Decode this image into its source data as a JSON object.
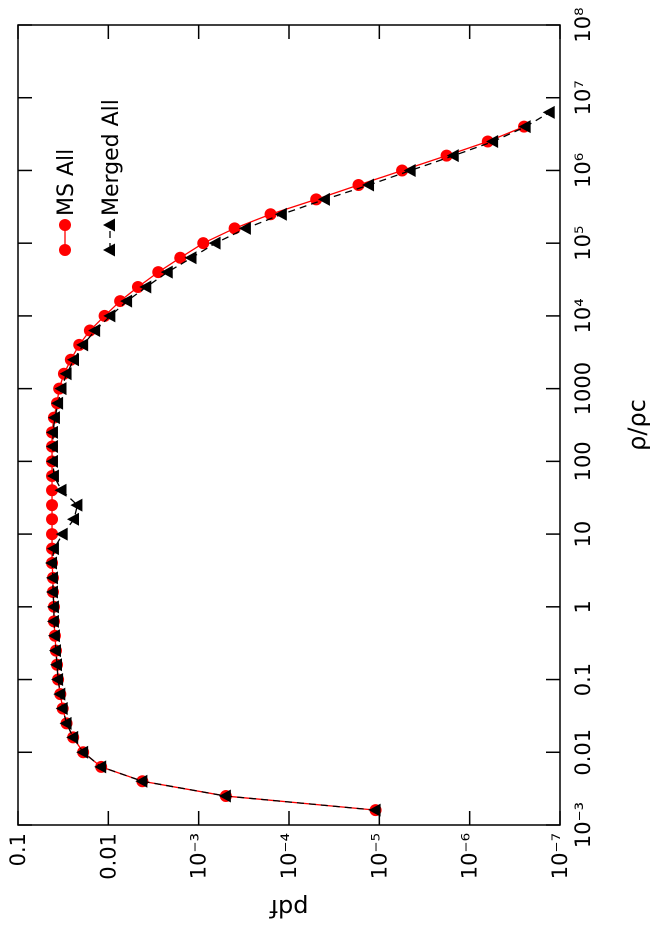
{
  "chart_data": {
    "type": "line",
    "xlabel": "ρ/ρc",
    "ylabel": "pdf",
    "xscale": "log",
    "yscale": "log",
    "xlim": [
      0.001,
      100000000
    ],
    "ylim": [
      1e-07,
      0.1
    ],
    "xticks": [
      {
        "value": 0.001,
        "label": "10⁻³"
      },
      0.01,
      0.1,
      1,
      10,
      100,
      1000,
      {
        "value": 10000,
        "label": "10⁴"
      },
      {
        "value": 100000,
        "label": "10⁵"
      },
      {
        "value": 1000000,
        "label": "10⁶"
      },
      {
        "value": 10000000,
        "label": "10⁷"
      },
      {
        "value": 100000000,
        "label": "10⁸"
      }
    ],
    "yticks": [
      {
        "value": 1e-07,
        "label": "10⁻⁷"
      },
      {
        "value": 1e-06,
        "label": "10⁻⁶"
      },
      {
        "value": 1e-05,
        "label": "10⁻⁵"
      },
      {
        "value": 0.0001,
        "label": "10⁻⁴"
      },
      {
        "value": 0.001,
        "label": "10⁻³"
      },
      0.01,
      0.1
    ],
    "legend": "top right",
    "x": [
      0.0016,
      0.0025,
      0.004,
      0.0063,
      0.01,
      0.016,
      0.025,
      0.04,
      0.063,
      0.1,
      0.16,
      0.25,
      0.4,
      0.63,
      1,
      1.6,
      2.5,
      4,
      6.3,
      10,
      16,
      25,
      40,
      63,
      100,
      160,
      250,
      400,
      630,
      1000,
      1600,
      2500,
      4000,
      6300,
      10000,
      16000,
      25000,
      40000,
      63000,
      100000,
      160000,
      250000,
      400000,
      630000,
      1000000,
      1600000,
      2500000,
      4000000,
      6300000
    ],
    "series": [
      {
        "name": "MS All",
        "color": "#ff0000",
        "marker": "circle",
        "linestyle": "solid",
        "values": [
          1.1e-05,
          0.0005,
          0.0042,
          0.012,
          0.019,
          0.0245,
          0.029,
          0.032,
          0.034,
          0.036,
          0.037,
          0.038,
          0.039,
          0.04,
          0.04,
          0.041,
          0.041,
          0.042,
          0.042,
          0.042,
          0.042,
          0.042,
          0.042,
          0.042,
          0.042,
          0.042,
          0.042,
          0.04,
          0.037,
          0.035,
          0.031,
          0.026,
          0.021,
          0.016,
          0.011,
          0.0074,
          0.0047,
          0.0028,
          0.0016,
          0.00089,
          0.0004,
          0.00016,
          5e-05,
          1.7e-05,
          5.6e-06,
          1.8e-06,
          6.3e-07,
          2.5e-07,
          null
        ]
      },
      {
        "name": "Merged All",
        "color": "#000000",
        "marker": "triangle",
        "linestyle": "dashed",
        "values": [
          1.1e-05,
          0.0005,
          0.0042,
          0.012,
          0.019,
          0.0245,
          0.029,
          0.032,
          0.034,
          0.036,
          0.037,
          0.038,
          0.039,
          0.04,
          0.04,
          0.041,
          0.041,
          0.042,
          0.04,
          0.032,
          0.024,
          0.022,
          0.033,
          0.04,
          0.041,
          0.041,
          0.041,
          0.039,
          0.036,
          0.033,
          0.029,
          0.024,
          0.019,
          0.014,
          0.0095,
          0.0062,
          0.0038,
          0.0022,
          0.0012,
          0.00065,
          0.0003,
          0.00012,
          4e-05,
          1.3e-05,
          4.5e-06,
          1.5e-06,
          5.5e-07,
          2.4e-07,
          1.3e-07
        ]
      }
    ]
  }
}
